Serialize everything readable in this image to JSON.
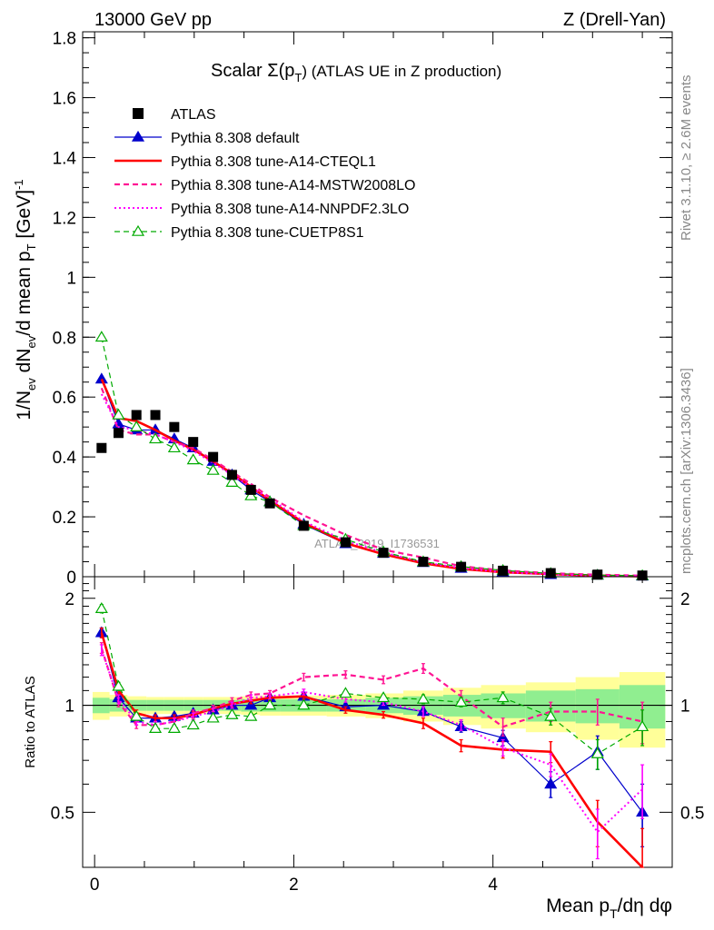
{
  "header": {
    "left": "13000 GeV pp",
    "right": "Z (Drell-Yan)"
  },
  "side_labels": {
    "rivet": "Rivet 3.1.10, ≥ 2.6M events",
    "mcplots": "mcplots.cern.ch [arXiv:1306.3436]"
  },
  "chart_data": [
    {
      "type": "scatter",
      "panel": "main",
      "title": "Scalar Σ(p_T) (ATLAS UE in Z production)",
      "title_main": "Scalar Σ(p",
      "title_sub": "T",
      "title_rest": ") (ATLAS UE in Z production)",
      "ylabel": "1/N_ev dN_ev/d mean p_T [GeV]^-1",
      "ylabel_parts": {
        "a": "1/N",
        "a_sub": "ev",
        "b": " dN",
        "b_sub": "ev",
        "c": "/d mean p",
        "c_sub": "T",
        "d": " [GeV]",
        "d_sup": "-1"
      },
      "watermark": "ATLAS_2019_I1736531",
      "xlim": [
        -0.12,
        5.8
      ],
      "ylim": [
        0,
        1.82
      ],
      "x_ticks": [
        0,
        2,
        4
      ],
      "y_ticks": [
        0,
        0.2,
        0.4,
        0.6,
        0.8,
        1,
        1.2,
        1.4,
        1.6,
        1.8
      ],
      "y_tick_labels": [
        "0",
        "0.2",
        "0.4",
        "0.6",
        "0.8",
        "1",
        "1.2",
        "1.4",
        "1.6",
        "1.8"
      ],
      "legend_position": "top-left",
      "x": [
        0.07,
        0.24,
        0.42,
        0.61,
        0.8,
        0.99,
        1.19,
        1.38,
        1.57,
        1.76,
        2.1,
        2.52,
        2.9,
        3.3,
        3.68,
        4.1,
        4.58,
        5.05,
        5.5
      ],
      "data": {
        "name": "ATLAS",
        "values": [
          0.43,
          0.48,
          0.54,
          0.54,
          0.5,
          0.45,
          0.4,
          0.34,
          0.29,
          0.245,
          0.17,
          0.115,
          0.08,
          0.05,
          0.033,
          0.02,
          0.012,
          0.007,
          0.004
        ]
      },
      "series": [
        {
          "name": "Pythia 8.308 default",
          "color": "#0000cc",
          "style": "solid-triangle",
          "values": [
            0.66,
            0.51,
            0.49,
            0.49,
            0.46,
            0.43,
            0.385,
            0.34,
            0.29,
            0.25,
            0.175,
            0.11,
            0.078,
            0.047,
            0.028,
            0.016,
            0.007,
            0.005,
            0.002
          ]
        },
        {
          "name": "Pythia 8.308 tune-A14-CTEQL1",
          "color": "#ff0000",
          "style": "solid",
          "values": [
            0.66,
            0.53,
            0.52,
            0.49,
            0.455,
            0.425,
            0.385,
            0.345,
            0.3,
            0.255,
            0.18,
            0.112,
            0.075,
            0.045,
            0.026,
            0.015,
            0.009,
            0.0035,
            0.0014
          ]
        },
        {
          "name": "Pythia 8.308 tune-A14-MSTW2008LO",
          "color": "#ff1493",
          "style": "dashed",
          "values": [
            0.63,
            0.49,
            0.475,
            0.475,
            0.45,
            0.43,
            0.39,
            0.35,
            0.31,
            0.265,
            0.205,
            0.14,
            0.09,
            0.064,
            0.035,
            0.021,
            0.0115,
            0.0068,
            0.0036
          ]
        },
        {
          "name": "Pythia 8.308 tune-A14-NNPDF2.3LO",
          "color": "#ff00ff",
          "style": "dotted",
          "values": [
            0.61,
            0.5,
            0.49,
            0.475,
            0.45,
            0.42,
            0.38,
            0.34,
            0.3,
            0.26,
            0.185,
            0.12,
            0.081,
            0.048,
            0.029,
            0.015,
            0.008,
            0.003,
            0.0023
          ]
        },
        {
          "name": "Pythia 8.308 tune-CUETP8S1",
          "color": "#00aa00",
          "style": "dashed-open-triangle",
          "values": [
            0.8,
            0.54,
            0.5,
            0.46,
            0.43,
            0.39,
            0.355,
            0.315,
            0.27,
            0.25,
            0.17,
            0.125,
            0.083,
            0.05,
            0.034,
            0.021,
            0.011,
            0.005,
            0.0035
          ]
        }
      ]
    },
    {
      "type": "line",
      "panel": "ratio",
      "ylabel": "Ratio to ATLAS",
      "xlabel": "Mean p_T/dη dφ",
      "xlabel_parts": {
        "a": "Mean p",
        "a_sub": "T",
        "b": "/dη dφ"
      },
      "xlim": [
        -0.12,
        5.8
      ],
      "ylim": [
        0.35,
        2.3
      ],
      "x_ticks": [
        0,
        2,
        4
      ],
      "x_tick_labels": [
        "0",
        "2",
        "4"
      ],
      "y_ticks": [
        0.5,
        1,
        2
      ],
      "y_tick_labels": [
        "0.5",
        "1",
        "2"
      ],
      "x": [
        0.07,
        0.24,
        0.42,
        0.61,
        0.8,
        0.99,
        1.19,
        1.38,
        1.57,
        1.76,
        2.1,
        2.52,
        2.9,
        3.3,
        3.68,
        4.1,
        4.58,
        5.05,
        5.5
      ],
      "bin_edges": [
        -0.02,
        0.15,
        0.33,
        0.52,
        0.7,
        0.9,
        1.09,
        1.28,
        1.47,
        1.66,
        1.86,
        2.33,
        2.72,
        3.1,
        3.5,
        3.88,
        4.33,
        4.83,
        5.27,
        5.73
      ],
      "band_inner": [
        0.05,
        0.04,
        0.035,
        0.035,
        0.035,
        0.035,
        0.035,
        0.035,
        0.04,
        0.04,
        0.04,
        0.04,
        0.05,
        0.06,
        0.07,
        0.08,
        0.1,
        0.11,
        0.14
      ],
      "band_outer": [
        0.09,
        0.07,
        0.06,
        0.055,
        0.055,
        0.055,
        0.055,
        0.055,
        0.06,
        0.065,
        0.065,
        0.07,
        0.08,
        0.1,
        0.12,
        0.14,
        0.16,
        0.2,
        0.24
      ],
      "series": [
        {
          "name": "Pythia 8.308 default",
          "color": "#0000cc",
          "style": "solid-triangle",
          "values": [
            1.6,
            1.05,
            0.92,
            0.92,
            0.93,
            0.95,
            0.97,
            1.0,
            1.0,
            1.05,
            1.06,
            0.99,
            1.0,
            0.96,
            0.87,
            0.81,
            0.6,
            0.74,
            0.5
          ],
          "errors": [
            0.05,
            0.03,
            0.02,
            0.02,
            0.02,
            0.02,
            0.02,
            0.02,
            0.02,
            0.02,
            0.02,
            0.02,
            0.02,
            0.03,
            0.03,
            0.04,
            0.05,
            0.08,
            0.1
          ]
        },
        {
          "name": "Pythia 8.308 tune-A14-CTEQL1",
          "color": "#ff0000",
          "style": "solid",
          "values": [
            1.6,
            1.1,
            0.95,
            0.92,
            0.92,
            0.94,
            0.98,
            1.01,
            1.03,
            1.05,
            1.06,
            0.97,
            0.94,
            0.89,
            0.77,
            0.75,
            0.74,
            0.47,
            0.35
          ],
          "errors": [
            0.05,
            0.03,
            0.02,
            0.02,
            0.02,
            0.02,
            0.02,
            0.02,
            0.02,
            0.02,
            0.02,
            0.02,
            0.02,
            0.03,
            0.03,
            0.04,
            0.05,
            0.07,
            0.1
          ]
        },
        {
          "name": "Pythia 8.308 tune-A14-MSTW2008LO",
          "color": "#ff1493",
          "style": "dashed",
          "values": [
            1.45,
            1.02,
            0.88,
            0.88,
            0.9,
            0.95,
            0.98,
            1.03,
            1.07,
            1.08,
            1.2,
            1.22,
            1.18,
            1.27,
            1.06,
            0.87,
            0.96,
            0.96,
            0.9
          ],
          "errors": [
            0.05,
            0.03,
            0.02,
            0.02,
            0.02,
            0.02,
            0.02,
            0.02,
            0.02,
            0.02,
            0.03,
            0.03,
            0.03,
            0.04,
            0.04,
            0.05,
            0.06,
            0.08,
            0.12
          ]
        },
        {
          "name": "Pythia 8.308 tune-A14-NNPDF2.3LO",
          "color": "#ff00ff",
          "style": "dotted",
          "values": [
            1.43,
            1.04,
            0.9,
            0.88,
            0.9,
            0.93,
            0.96,
            1.0,
            1.05,
            1.06,
            1.09,
            1.04,
            1.02,
            0.96,
            0.88,
            0.76,
            0.68,
            0.44,
            0.58
          ],
          "errors": [
            0.05,
            0.03,
            0.02,
            0.02,
            0.02,
            0.02,
            0.02,
            0.02,
            0.02,
            0.02,
            0.02,
            0.02,
            0.02,
            0.03,
            0.03,
            0.04,
            0.05,
            0.07,
            0.1
          ]
        },
        {
          "name": "Pythia 8.308 tune-CUETP8S1",
          "color": "#00aa00",
          "style": "dashed-open-triangle",
          "values": [
            1.87,
            1.13,
            0.93,
            0.86,
            0.86,
            0.88,
            0.92,
            0.94,
            0.93,
            1.0,
            1.0,
            1.08,
            1.05,
            1.04,
            1.02,
            1.05,
            0.93,
            0.73,
            0.87
          ],
          "errors": [
            0.05,
            0.03,
            0.02,
            0.02,
            0.02,
            0.02,
            0.02,
            0.02,
            0.02,
            0.02,
            0.02,
            0.02,
            0.02,
            0.03,
            0.03,
            0.04,
            0.05,
            0.07,
            0.1
          ]
        }
      ]
    }
  ]
}
